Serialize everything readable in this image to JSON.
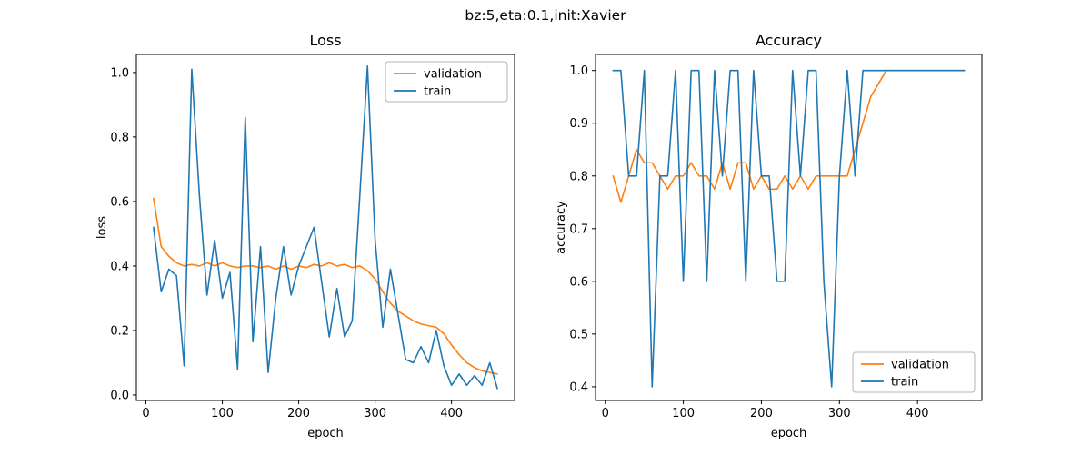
{
  "figure": {
    "suptitle": "bz:5,eta:0.1,init:Xavier",
    "background": "#ffffff",
    "text_color": "#000000",
    "series_colors": {
      "validation": "#ff7f0e",
      "train": "#1f77b4"
    }
  },
  "chart_data": [
    {
      "type": "line",
      "title": "Loss",
      "xlabel": "epoch",
      "ylabel": "loss",
      "legend_position": "upper-right",
      "legend_entries": [
        "validation",
        "train"
      ],
      "grid": false,
      "xlim": [
        -12.5,
        482.5
      ],
      "ylim": [
        -0.017,
        1.056
      ],
      "xticks": [
        0,
        100,
        200,
        300,
        400
      ],
      "yticks": [
        0.0,
        0.2,
        0.4,
        0.6,
        0.8,
        1.0
      ],
      "ytick_labels": [
        "0.0",
        "0.2",
        "0.4",
        "0.6",
        "0.8",
        "1.0"
      ],
      "x": [
        10,
        20,
        30,
        40,
        50,
        60,
        70,
        80,
        90,
        100,
        110,
        120,
        130,
        140,
        150,
        160,
        170,
        180,
        190,
        200,
        210,
        220,
        230,
        240,
        250,
        260,
        270,
        280,
        290,
        300,
        310,
        320,
        330,
        340,
        350,
        360,
        370,
        380,
        390,
        400,
        410,
        420,
        430,
        440,
        450,
        460
      ],
      "series": [
        {
          "name": "validation",
          "color": "#ff7f0e",
          "values": [
            0.61,
            0.46,
            0.43,
            0.41,
            0.4,
            0.405,
            0.4,
            0.41,
            0.4,
            0.41,
            0.4,
            0.395,
            0.4,
            0.4,
            0.395,
            0.4,
            0.39,
            0.4,
            0.39,
            0.4,
            0.395,
            0.405,
            0.4,
            0.41,
            0.4,
            0.405,
            0.395,
            0.4,
            0.385,
            0.36,
            0.32,
            0.285,
            0.26,
            0.245,
            0.23,
            0.22,
            0.215,
            0.21,
            0.19,
            0.155,
            0.125,
            0.1,
            0.085,
            0.075,
            0.07,
            0.065
          ]
        },
        {
          "name": "train",
          "color": "#1f77b4",
          "values": [
            0.52,
            0.32,
            0.39,
            0.37,
            0.09,
            1.01,
            0.62,
            0.31,
            0.48,
            0.3,
            0.38,
            0.08,
            0.86,
            0.165,
            0.46,
            0.07,
            0.3,
            0.46,
            0.31,
            0.4,
            0.46,
            0.52,
            0.35,
            0.18,
            0.33,
            0.18,
            0.23,
            0.62,
            1.02,
            0.48,
            0.21,
            0.39,
            0.25,
            0.11,
            0.1,
            0.15,
            0.1,
            0.2,
            0.09,
            0.03,
            0.065,
            0.03,
            0.06,
            0.03,
            0.1,
            0.02
          ]
        }
      ]
    },
    {
      "type": "line",
      "title": "Accuracy",
      "xlabel": "epoch",
      "ylabel": "accuracy",
      "legend_position": "lower-right",
      "legend_entries": [
        "validation",
        "train"
      ],
      "grid": false,
      "xlim": [
        -12.5,
        482.5
      ],
      "ylim": [
        0.374,
        1.0305
      ],
      "xticks": [
        0,
        100,
        200,
        300,
        400
      ],
      "yticks": [
        0.4,
        0.5,
        0.6,
        0.7,
        0.8,
        0.9,
        1.0
      ],
      "ytick_labels": [
        "0.4",
        "0.5",
        "0.6",
        "0.7",
        "0.8",
        "0.9",
        "1.0"
      ],
      "x": [
        10,
        20,
        30,
        40,
        50,
        60,
        70,
        80,
        90,
        100,
        110,
        120,
        130,
        140,
        150,
        160,
        170,
        180,
        190,
        200,
        210,
        220,
        230,
        240,
        250,
        260,
        270,
        280,
        290,
        300,
        310,
        320,
        330,
        340,
        350,
        360,
        370,
        380,
        390,
        400,
        410,
        420,
        430,
        440,
        450,
        460
      ],
      "series": [
        {
          "name": "validation",
          "color": "#ff7f0e",
          "values": [
            0.8,
            0.75,
            0.8,
            0.85,
            0.825,
            0.825,
            0.8,
            0.775,
            0.8,
            0.8,
            0.825,
            0.8,
            0.8,
            0.775,
            0.825,
            0.775,
            0.825,
            0.825,
            0.775,
            0.8,
            0.775,
            0.775,
            0.8,
            0.775,
            0.8,
            0.775,
            0.8,
            0.8,
            0.8,
            0.8,
            0.8,
            0.85,
            0.9,
            0.95,
            0.975,
            1.0,
            1.0,
            1.0,
            1.0,
            1.0,
            1.0,
            1.0,
            1.0,
            1.0,
            1.0,
            1.0
          ]
        },
        {
          "name": "train",
          "color": "#1f77b4",
          "values": [
            1.0,
            1.0,
            0.8,
            0.8,
            1.0,
            0.4,
            0.8,
            0.8,
            1.0,
            0.6,
            1.0,
            1.0,
            0.6,
            1.0,
            0.8,
            1.0,
            1.0,
            0.6,
            1.0,
            0.8,
            0.8,
            0.6,
            0.6,
            1.0,
            0.8,
            1.0,
            1.0,
            0.6,
            0.4,
            0.8,
            1.0,
            0.8,
            1.0,
            1.0,
            1.0,
            1.0,
            1.0,
            1.0,
            1.0,
            1.0,
            1.0,
            1.0,
            1.0,
            1.0,
            1.0,
            1.0
          ]
        }
      ]
    }
  ]
}
